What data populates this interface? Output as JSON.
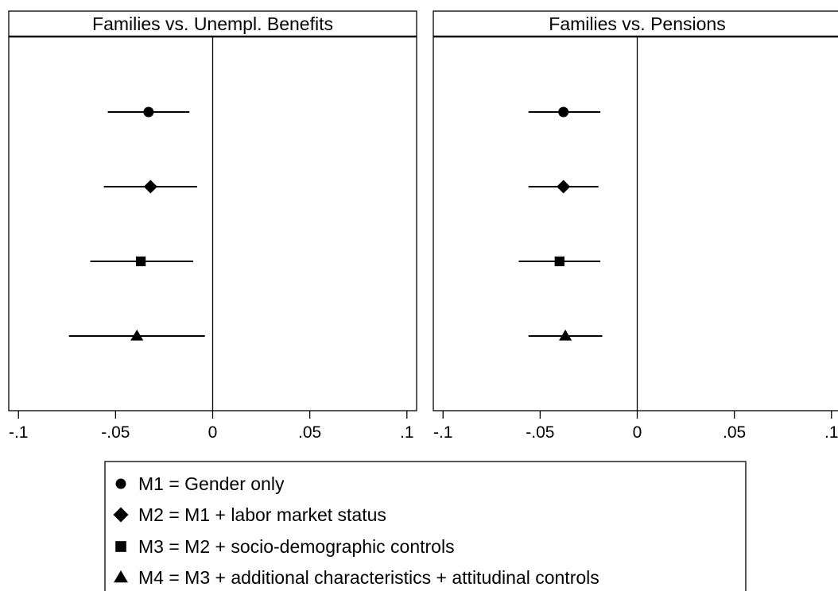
{
  "chart_data": {
    "type": "coefficient-plot",
    "xlim": [
      -0.105,
      0.105
    ],
    "x_ticks": [
      -0.1,
      -0.05,
      0,
      0.05,
      0.1
    ],
    "x_tick_labels": [
      "-.1",
      "-.05",
      "0",
      ".05",
      ".1"
    ],
    "reference_line": 0,
    "grid": false,
    "legend_position": "bottom-center",
    "models": [
      {
        "id": "M1",
        "marker": "circle",
        "label": "M1 = Gender only"
      },
      {
        "id": "M2",
        "marker": "diamond",
        "label": "M2 = M1 + labor market status"
      },
      {
        "id": "M3",
        "marker": "square",
        "label": "M3 = M2 + socio-demographic controls"
      },
      {
        "id": "M4",
        "marker": "triangle",
        "label": "M4 = M3 + additional characteristics + attitudinal controls"
      }
    ],
    "panels": [
      {
        "title": "Families vs. Unempl. Benefits",
        "estimates": [
          {
            "model": "M1",
            "estimate": -0.033,
            "ci_low": -0.054,
            "ci_high": -0.012
          },
          {
            "model": "M2",
            "estimate": -0.032,
            "ci_low": -0.056,
            "ci_high": -0.008
          },
          {
            "model": "M3",
            "estimate": -0.037,
            "ci_low": -0.063,
            "ci_high": -0.01
          },
          {
            "model": "M4",
            "estimate": -0.039,
            "ci_low": -0.074,
            "ci_high": -0.004
          }
        ]
      },
      {
        "title": "Families vs. Pensions",
        "estimates": [
          {
            "model": "M1",
            "estimate": -0.038,
            "ci_low": -0.056,
            "ci_high": -0.019
          },
          {
            "model": "M2",
            "estimate": -0.038,
            "ci_low": -0.056,
            "ci_high": -0.02
          },
          {
            "model": "M3",
            "estimate": -0.04,
            "ci_low": -0.061,
            "ci_high": -0.019
          },
          {
            "model": "M4",
            "estimate": -0.037,
            "ci_low": -0.056,
            "ci_high": -0.018
          }
        ]
      }
    ]
  },
  "colors": {
    "marker": "#000000",
    "line": "#000000",
    "background": "#ffffff"
  }
}
